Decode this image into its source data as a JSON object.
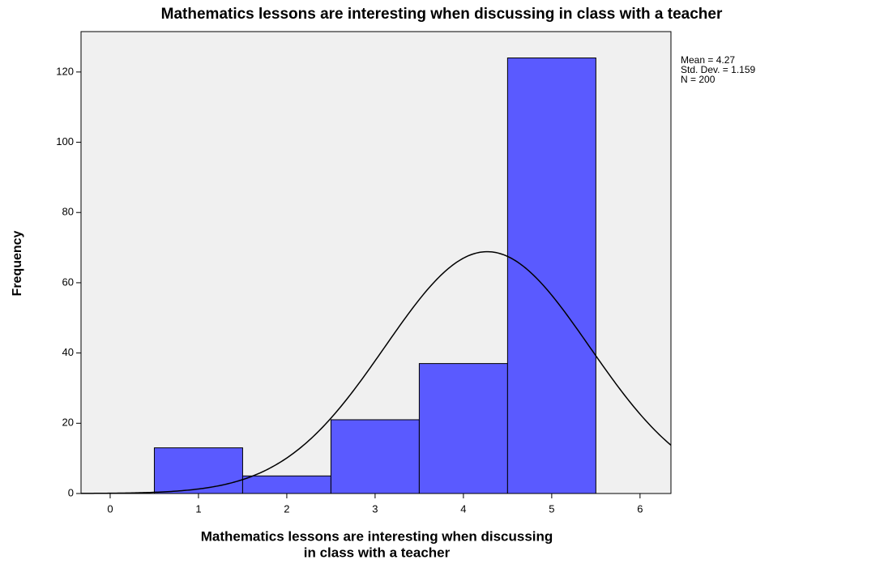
{
  "chart_data": {
    "type": "histogram",
    "title": "Mathematics lessons are interesting when discussing in class with a teacher",
    "xlabel": [
      "Mathematics lessons are interesting when discussing",
      "in class with a teacher"
    ],
    "ylabel": "Frequency",
    "bins": [
      0.5,
      1.5,
      2.5,
      3.5,
      4.5,
      5.5
    ],
    "values": [
      13,
      5,
      21,
      37,
      124
    ],
    "color": "#5a5aff",
    "xlim": [
      -0.33,
      6.35
    ],
    "xticks": [
      0,
      1,
      2,
      3,
      4,
      5,
      6
    ],
    "ylim": [
      0,
      131.5
    ],
    "yticks": [
      0,
      20,
      40,
      60,
      80,
      100,
      120
    ],
    "stats": [
      {
        "value": 4.27,
        "label": "Mean = 4.27"
      },
      {
        "value": 1.159,
        "label": "Std. Dev. = 1.159"
      },
      {
        "value": 200,
        "label": "N = 200"
      }
    ]
  }
}
